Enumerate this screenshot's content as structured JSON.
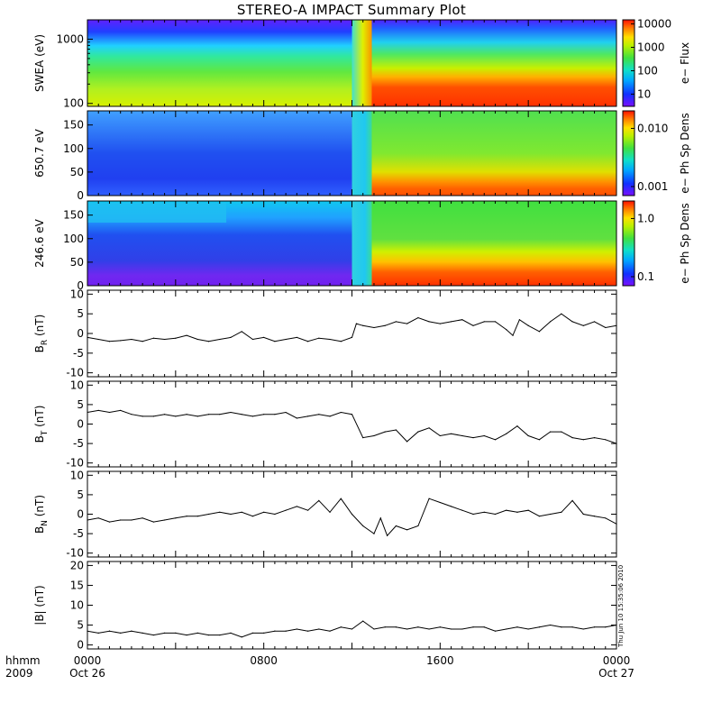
{
  "title": "STEREO-A IMPACT Summary Plot",
  "footer": {
    "hhmm": "hhmm",
    "year": "2009"
  },
  "timestamp": "Thu Jun 10 15:35:06 2010",
  "time_axis": {
    "range_hours": [
      0,
      24
    ],
    "ticks": [
      {
        "hour": 0,
        "label": "0000",
        "date": "Oct 26"
      },
      {
        "hour": 8,
        "label": "0800",
        "date": ""
      },
      {
        "hour": 16,
        "label": "1600",
        "date": ""
      },
      {
        "hour": 24,
        "label": "0000",
        "date": "Oct 27"
      }
    ]
  },
  "chart_data": [
    {
      "type": "heatmap",
      "ylabel": "SWEA (eV)",
      "yscale": "log",
      "ylim": [
        90,
        2000
      ],
      "yticks": [
        {
          "v": 100,
          "label": "100"
        },
        {
          "v": 1000,
          "label": "1000"
        }
      ],
      "colorbar": {
        "label": "e− Flux",
        "scale": "log",
        "range": [
          3,
          15000
        ],
        "ticks": [
          {
            "v": 10,
            "label": "10"
          },
          {
            "v": 100,
            "label": "100"
          },
          {
            "v": 1000,
            "label": "1000"
          },
          {
            "v": 10000,
            "label": "10000"
          }
        ]
      },
      "description_levels": {
        "shock_hour": 12.9,
        "pre_low_energy_flux": 500,
        "post_low_energy_flux": 8000
      }
    },
    {
      "type": "heatmap",
      "ylabel": "650.7 eV",
      "ylim": [
        0,
        180
      ],
      "yticks": [
        {
          "v": 0,
          "label": "0"
        },
        {
          "v": 50,
          "label": "50"
        },
        {
          "v": 100,
          "label": "100"
        },
        {
          "v": 150,
          "label": "150"
        }
      ],
      "colorbar": {
        "label": "e− Ph Sp Dens",
        "scale": "log",
        "range": [
          0.0007,
          0.02
        ],
        "ticks": [
          {
            "v": 0.001,
            "label": "0.001"
          },
          {
            "v": 0.01,
            "label": "0.010"
          }
        ]
      },
      "description_levels": {
        "shock_hour": 12.9
      }
    },
    {
      "type": "heatmap",
      "ylabel": "246.6 eV",
      "ylim": [
        0,
        180
      ],
      "yticks": [
        {
          "v": 0,
          "label": "0"
        },
        {
          "v": 50,
          "label": "50"
        },
        {
          "v": 100,
          "label": "100"
        },
        {
          "v": 150,
          "label": "150"
        }
      ],
      "colorbar": {
        "label": "e− Ph Sp Dens",
        "scale": "log",
        "range": [
          0.07,
          2.0
        ],
        "ticks": [
          {
            "v": 0.1,
            "label": "0.1"
          },
          {
            "v": 1.0,
            "label": "1.0"
          }
        ]
      },
      "description_levels": {
        "shock_hour": 12.9
      }
    },
    {
      "type": "line",
      "ylabel": "B",
      "ysub": "R",
      "yunit": " (nT)",
      "ylim": [
        -11,
        11
      ],
      "yticks": [
        -10,
        -5,
        0,
        5,
        10
      ],
      "x": [
        0,
        0.5,
        1,
        1.5,
        2,
        2.5,
        3,
        3.5,
        4,
        4.5,
        5,
        5.5,
        6,
        6.5,
        7,
        7.5,
        8,
        8.5,
        9,
        9.5,
        10,
        10.5,
        11,
        11.5,
        12,
        12.2,
        12.5,
        13,
        13.5,
        14,
        14.5,
        15,
        15.5,
        16,
        16.5,
        17,
        17.5,
        18,
        18.5,
        19,
        19.3,
        19.6,
        20,
        20.5,
        21,
        21.5,
        22,
        22.5,
        23,
        23.5,
        24
      ],
      "y": [
        -1,
        -1.5,
        -2,
        -1.8,
        -1.5,
        -2,
        -1.2,
        -1.5,
        -1.2,
        -0.5,
        -1.5,
        -2,
        -1.5,
        -1,
        0.5,
        -1.5,
        -1,
        -2,
        -1.5,
        -1,
        -2,
        -1.2,
        -1.5,
        -2,
        -1,
        2.5,
        2,
        1.5,
        2,
        3,
        2.5,
        4,
        3,
        2.5,
        3,
        3.5,
        2,
        3,
        3,
        1,
        -0.5,
        3.5,
        2,
        0.5,
        3,
        5,
        3,
        2,
        3,
        1.5,
        2
      ]
    },
    {
      "type": "line",
      "ylabel": "B",
      "ysub": "T",
      "yunit": " (nT)",
      "ylim": [
        -11,
        11
      ],
      "yticks": [
        -10,
        -5,
        0,
        5,
        10
      ],
      "x": [
        0,
        0.5,
        1,
        1.5,
        2,
        2.5,
        3,
        3.5,
        4,
        4.5,
        5,
        5.5,
        6,
        6.5,
        7,
        7.5,
        8,
        8.5,
        9,
        9.5,
        10,
        10.5,
        11,
        11.5,
        12,
        12.5,
        13,
        13.5,
        14,
        14.5,
        15,
        15.5,
        16,
        16.5,
        17,
        17.5,
        18,
        18.5,
        19,
        19.5,
        20,
        20.5,
        21,
        21.5,
        22,
        22.5,
        23,
        23.5,
        24
      ],
      "y": [
        3,
        3.5,
        3,
        3.5,
        2.5,
        2,
        2,
        2.5,
        2,
        2.5,
        2,
        2.5,
        2.5,
        3,
        2.5,
        2,
        2.5,
        2.5,
        3,
        1.5,
        2,
        2.5,
        2,
        3,
        2.5,
        -3.5,
        -3,
        -2,
        -1.5,
        -4.5,
        -2,
        -1,
        -3,
        -2.5,
        -3,
        -3.5,
        -3,
        -4,
        -2.5,
        -0.5,
        -3,
        -4,
        -2,
        -2,
        -3.5,
        -4,
        -3.5,
        -4,
        -5
      ]
    },
    {
      "type": "line",
      "ylabel": "B",
      "ysub": "N",
      "yunit": " (nT)",
      "ylim": [
        -11,
        11
      ],
      "yticks": [
        -10,
        -5,
        0,
        5,
        10
      ],
      "x": [
        0,
        0.5,
        1,
        1.5,
        2,
        2.5,
        3,
        3.5,
        4,
        4.5,
        5,
        5.5,
        6,
        6.5,
        7,
        7.5,
        8,
        8.5,
        9,
        9.5,
        10,
        10.5,
        11,
        11.5,
        12,
        12.5,
        13,
        13.3,
        13.6,
        14,
        14.5,
        15,
        15.5,
        16,
        16.5,
        17,
        17.5,
        18,
        18.5,
        19,
        19.5,
        20,
        20.5,
        21,
        21.5,
        22,
        22.5,
        23,
        23.5,
        24
      ],
      "y": [
        -1.5,
        -1,
        -2,
        -1.5,
        -1.5,
        -1,
        -2,
        -1.5,
        -1,
        -0.5,
        -0.5,
        0,
        0.5,
        0,
        0.5,
        -0.5,
        0.5,
        0,
        1,
        2,
        1,
        3.5,
        0.5,
        4,
        0,
        -3,
        -5,
        -1,
        -5.5,
        -3,
        -4,
        -3,
        4,
        3,
        2,
        1,
        0,
        0.5,
        0,
        1,
        0.5,
        1,
        -0.5,
        0,
        0.5,
        3.5,
        0,
        -0.5,
        -1,
        -2.5
      ]
    },
    {
      "type": "line",
      "ylabel": "|B| (nT)",
      "ylim": [
        -1,
        21
      ],
      "yticks": [
        0,
        5,
        10,
        15,
        20
      ],
      "x": [
        0,
        0.5,
        1,
        1.5,
        2,
        2.5,
        3,
        3.5,
        4,
        4.5,
        5,
        5.5,
        6,
        6.5,
        7,
        7.5,
        8,
        8.5,
        9,
        9.5,
        10,
        10.5,
        11,
        11.5,
        12,
        12.5,
        13,
        13.5,
        14,
        14.5,
        15,
        15.5,
        16,
        16.5,
        17,
        17.5,
        18,
        18.5,
        19,
        19.5,
        20,
        20.5,
        21,
        21.5,
        22,
        22.5,
        23,
        23.5,
        24
      ],
      "y": [
        3.5,
        3,
        3.5,
        3,
        3.5,
        3,
        2.5,
        3,
        3,
        2.5,
        3,
        2.5,
        2.5,
        3,
        2,
        3,
        3,
        3.5,
        3.5,
        4,
        3.5,
        4,
        3.5,
        4.5,
        4,
        6,
        4,
        4.5,
        4.5,
        4,
        4.5,
        4,
        4.5,
        4,
        4,
        4.5,
        4.5,
        3.5,
        4,
        4.5,
        4,
        4.5,
        5,
        4.5,
        4.5,
        4,
        4.5,
        4.5,
        5
      ]
    }
  ]
}
